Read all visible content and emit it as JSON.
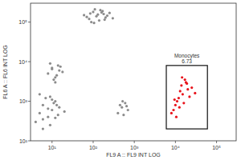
{
  "chart_data": {
    "type": "scatter",
    "log": true,
    "marker": "circle",
    "x_label": "FL9 A :: FL9 INT LOG",
    "y_label": "FL6 A :: FL6 INT LOG",
    "xlim": [
      3,
      300000
    ],
    "xticks": [
      {
        "value": 10,
        "label": "10¹"
      },
      {
        "value": 100,
        "label": "10²"
      },
      {
        "value": 1000,
        "label": "10³"
      },
      {
        "value": 10000,
        "label": "10⁴"
      },
      {
        "value": 100000,
        "label": "10⁵"
      }
    ],
    "ylim": [
      100,
      300000
    ],
    "yticks": [
      {
        "value": 100,
        "label": "10²"
      },
      {
        "value": 1000,
        "label": "10³"
      },
      {
        "value": 10000,
        "label": "10⁴"
      },
      {
        "value": 100000,
        "label": "10⁵"
      }
    ],
    "series": [
      {
        "color": "#8c8c8c",
        "x": [
          60,
          80,
          100,
          120,
          150,
          180,
          200,
          250,
          90,
          110,
          140,
          170,
          70,
          130,
          220,
          300,
          160,
          105,
          190,
          85,
          8,
          10,
          12,
          15,
          9,
          11,
          14,
          18,
          13,
          10,
          16,
          12,
          4,
          5,
          6,
          8,
          10,
          12,
          15,
          7,
          9,
          11,
          5,
          6,
          14,
          20,
          8,
          10,
          13,
          6,
          9,
          12,
          400,
          500,
          600,
          700,
          450,
          550,
          650,
          520
        ],
        "values": [
          150000,
          120000,
          180000,
          140000,
          200000,
          160000,
          130000,
          170000,
          100000,
          210000,
          110000,
          190000,
          135000,
          155000,
          145000,
          125000,
          175000,
          95000,
          115000,
          165000,
          5000,
          7000,
          4000,
          6000,
          9000,
          3500,
          8000,
          5500,
          4500,
          6500,
          7500,
          3000,
          300,
          500,
          800,
          400,
          600,
          1000,
          700,
          1200,
          250,
          900,
          1500,
          350,
          450,
          550,
          650,
          1100,
          800,
          200,
          1300,
          380,
          500,
          700,
          900,
          600,
          800,
          450,
          750,
          1000
        ]
      },
      {
        "name": "Monocytes",
        "color": "#e8141c",
        "x": [
          8000,
          10000,
          12000,
          15000,
          20000,
          9000,
          11000,
          14000,
          18000,
          25000,
          13000,
          16000,
          10500,
          22000,
          12500,
          17000,
          9500,
          30000,
          14500,
          19000
        ],
        "values": [
          500,
          800,
          1200,
          1500,
          2000,
          600,
          1000,
          2500,
          3000,
          2200,
          1800,
          900,
          400,
          1300,
          700,
          3500,
          1100,
          1600,
          4000,
          2800
        ]
      }
    ],
    "gate": {
      "label": "Monocytes",
      "value": 6.73,
      "x": [
        6000,
        60000
      ],
      "y": [
        200,
        8000
      ]
    }
  }
}
